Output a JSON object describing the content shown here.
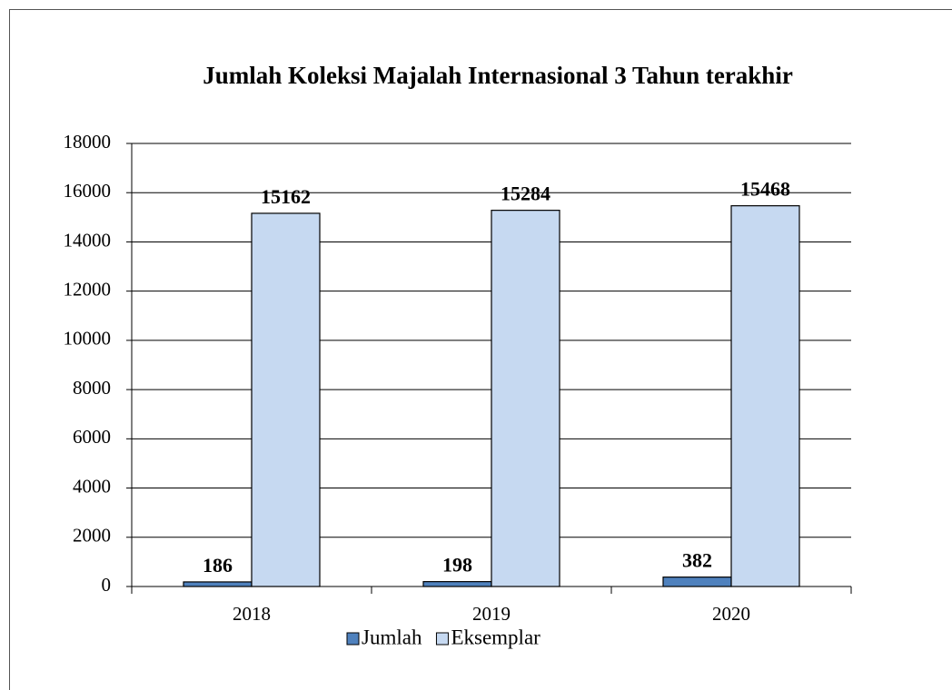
{
  "chart_data": {
    "type": "bar",
    "title": "Jumlah Koleksi Majalah Internasional 3 Tahun terakhir",
    "categories": [
      "2018",
      "2019",
      "2020"
    ],
    "series": [
      {
        "name": "Jumlah",
        "color": "#4f81bd",
        "values": [
          186,
          198,
          382
        ]
      },
      {
        "name": "Eksemplar",
        "color": "#c6d9f1",
        "values": [
          15162,
          15284,
          15468
        ]
      }
    ],
    "ylim": [
      0,
      18000
    ],
    "yticks": [
      0,
      2000,
      4000,
      6000,
      8000,
      10000,
      12000,
      14000,
      16000,
      18000
    ],
    "grid": true,
    "legend": "bottom"
  }
}
